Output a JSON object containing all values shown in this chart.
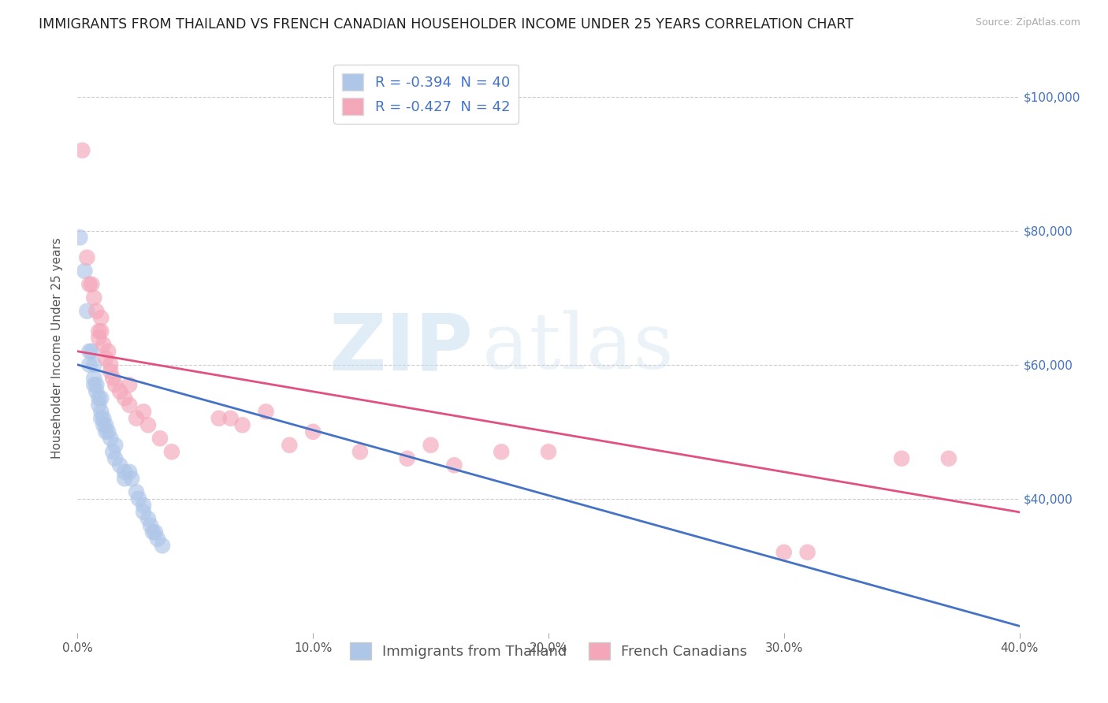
{
  "title": "IMMIGRANTS FROM THAILAND VS FRENCH CANADIAN HOUSEHOLDER INCOME UNDER 25 YEARS CORRELATION CHART",
  "source": "Source: ZipAtlas.com",
  "ylabel": "Householder Income Under 25 years",
  "xlim": [
    0.0,
    0.4
  ],
  "ylim": [
    20000,
    105000
  ],
  "xtick_labels": [
    "0.0%",
    "10.0%",
    "20.0%",
    "30.0%",
    "40.0%"
  ],
  "xtick_vals": [
    0.0,
    0.1,
    0.2,
    0.3,
    0.4
  ],
  "ytick_labels": [
    "$40,000",
    "$60,000",
    "$80,000",
    "$100,000"
  ],
  "ytick_vals": [
    40000,
    60000,
    80000,
    100000
  ],
  "legend_items": [
    {
      "label": "R = -0.394  N = 40",
      "color": "#aec6e8"
    },
    {
      "label": "R = -0.427  N = 42",
      "color": "#f4a7b9"
    }
  ],
  "watermark_zip": "ZIP",
  "watermark_atlas": "atlas",
  "blue_scatter": [
    [
      0.001,
      79000
    ],
    [
      0.003,
      74000
    ],
    [
      0.004,
      68000
    ],
    [
      0.005,
      62000
    ],
    [
      0.005,
      60000
    ],
    [
      0.006,
      62000
    ],
    [
      0.007,
      60000
    ],
    [
      0.007,
      58000
    ],
    [
      0.007,
      57000
    ],
    [
      0.008,
      57000
    ],
    [
      0.008,
      56000
    ],
    [
      0.009,
      55000
    ],
    [
      0.009,
      54000
    ],
    [
      0.01,
      55000
    ],
    [
      0.01,
      53000
    ],
    [
      0.01,
      52000
    ],
    [
      0.011,
      52000
    ],
    [
      0.011,
      51000
    ],
    [
      0.012,
      51000
    ],
    [
      0.012,
      50000
    ],
    [
      0.013,
      50000
    ],
    [
      0.014,
      49000
    ],
    [
      0.015,
      47000
    ],
    [
      0.016,
      48000
    ],
    [
      0.016,
      46000
    ],
    [
      0.018,
      45000
    ],
    [
      0.02,
      44000
    ],
    [
      0.02,
      43000
    ],
    [
      0.022,
      44000
    ],
    [
      0.023,
      43000
    ],
    [
      0.025,
      41000
    ],
    [
      0.026,
      40000
    ],
    [
      0.028,
      39000
    ],
    [
      0.028,
      38000
    ],
    [
      0.03,
      37000
    ],
    [
      0.031,
      36000
    ],
    [
      0.032,
      35000
    ],
    [
      0.033,
      35000
    ],
    [
      0.034,
      34000
    ],
    [
      0.036,
      33000
    ]
  ],
  "pink_scatter": [
    [
      0.002,
      92000
    ],
    [
      0.004,
      76000
    ],
    [
      0.005,
      72000
    ],
    [
      0.006,
      72000
    ],
    [
      0.007,
      70000
    ],
    [
      0.008,
      68000
    ],
    [
      0.009,
      65000
    ],
    [
      0.009,
      64000
    ],
    [
      0.01,
      67000
    ],
    [
      0.01,
      65000
    ],
    [
      0.011,
      63000
    ],
    [
      0.012,
      61000
    ],
    [
      0.013,
      62000
    ],
    [
      0.014,
      60000
    ],
    [
      0.014,
      59000
    ],
    [
      0.015,
      58000
    ],
    [
      0.016,
      57000
    ],
    [
      0.018,
      56000
    ],
    [
      0.02,
      55000
    ],
    [
      0.022,
      57000
    ],
    [
      0.022,
      54000
    ],
    [
      0.025,
      52000
    ],
    [
      0.028,
      53000
    ],
    [
      0.03,
      51000
    ],
    [
      0.035,
      49000
    ],
    [
      0.04,
      47000
    ],
    [
      0.06,
      52000
    ],
    [
      0.065,
      52000
    ],
    [
      0.07,
      51000
    ],
    [
      0.08,
      53000
    ],
    [
      0.09,
      48000
    ],
    [
      0.1,
      50000
    ],
    [
      0.12,
      47000
    ],
    [
      0.14,
      46000
    ],
    [
      0.15,
      48000
    ],
    [
      0.16,
      45000
    ],
    [
      0.18,
      47000
    ],
    [
      0.2,
      47000
    ],
    [
      0.3,
      32000
    ],
    [
      0.31,
      32000
    ],
    [
      0.35,
      46000
    ],
    [
      0.37,
      46000
    ]
  ],
  "blue_line_x": [
    0.0,
    0.4
  ],
  "blue_line_y": [
    60000,
    21000
  ],
  "pink_line_x": [
    0.0,
    0.4
  ],
  "pink_line_y": [
    62000,
    38000
  ],
  "scatter_color_blue": "#aec6e8",
  "scatter_color_pink": "#f4a7b9",
  "line_color_blue": "#4472c4",
  "line_color_pink": "#e05080",
  "background_color": "#ffffff",
  "grid_color": "#cccccc",
  "title_fontsize": 12.5,
  "axis_label_fontsize": 11,
  "tick_fontsize": 11,
  "legend_fontsize": 13,
  "right_tick_color": "#4472c4",
  "bottom_legend": [
    {
      "label": "Immigrants from Thailand",
      "color": "#aec6e8"
    },
    {
      "label": "French Canadians",
      "color": "#f4a7b9"
    }
  ]
}
